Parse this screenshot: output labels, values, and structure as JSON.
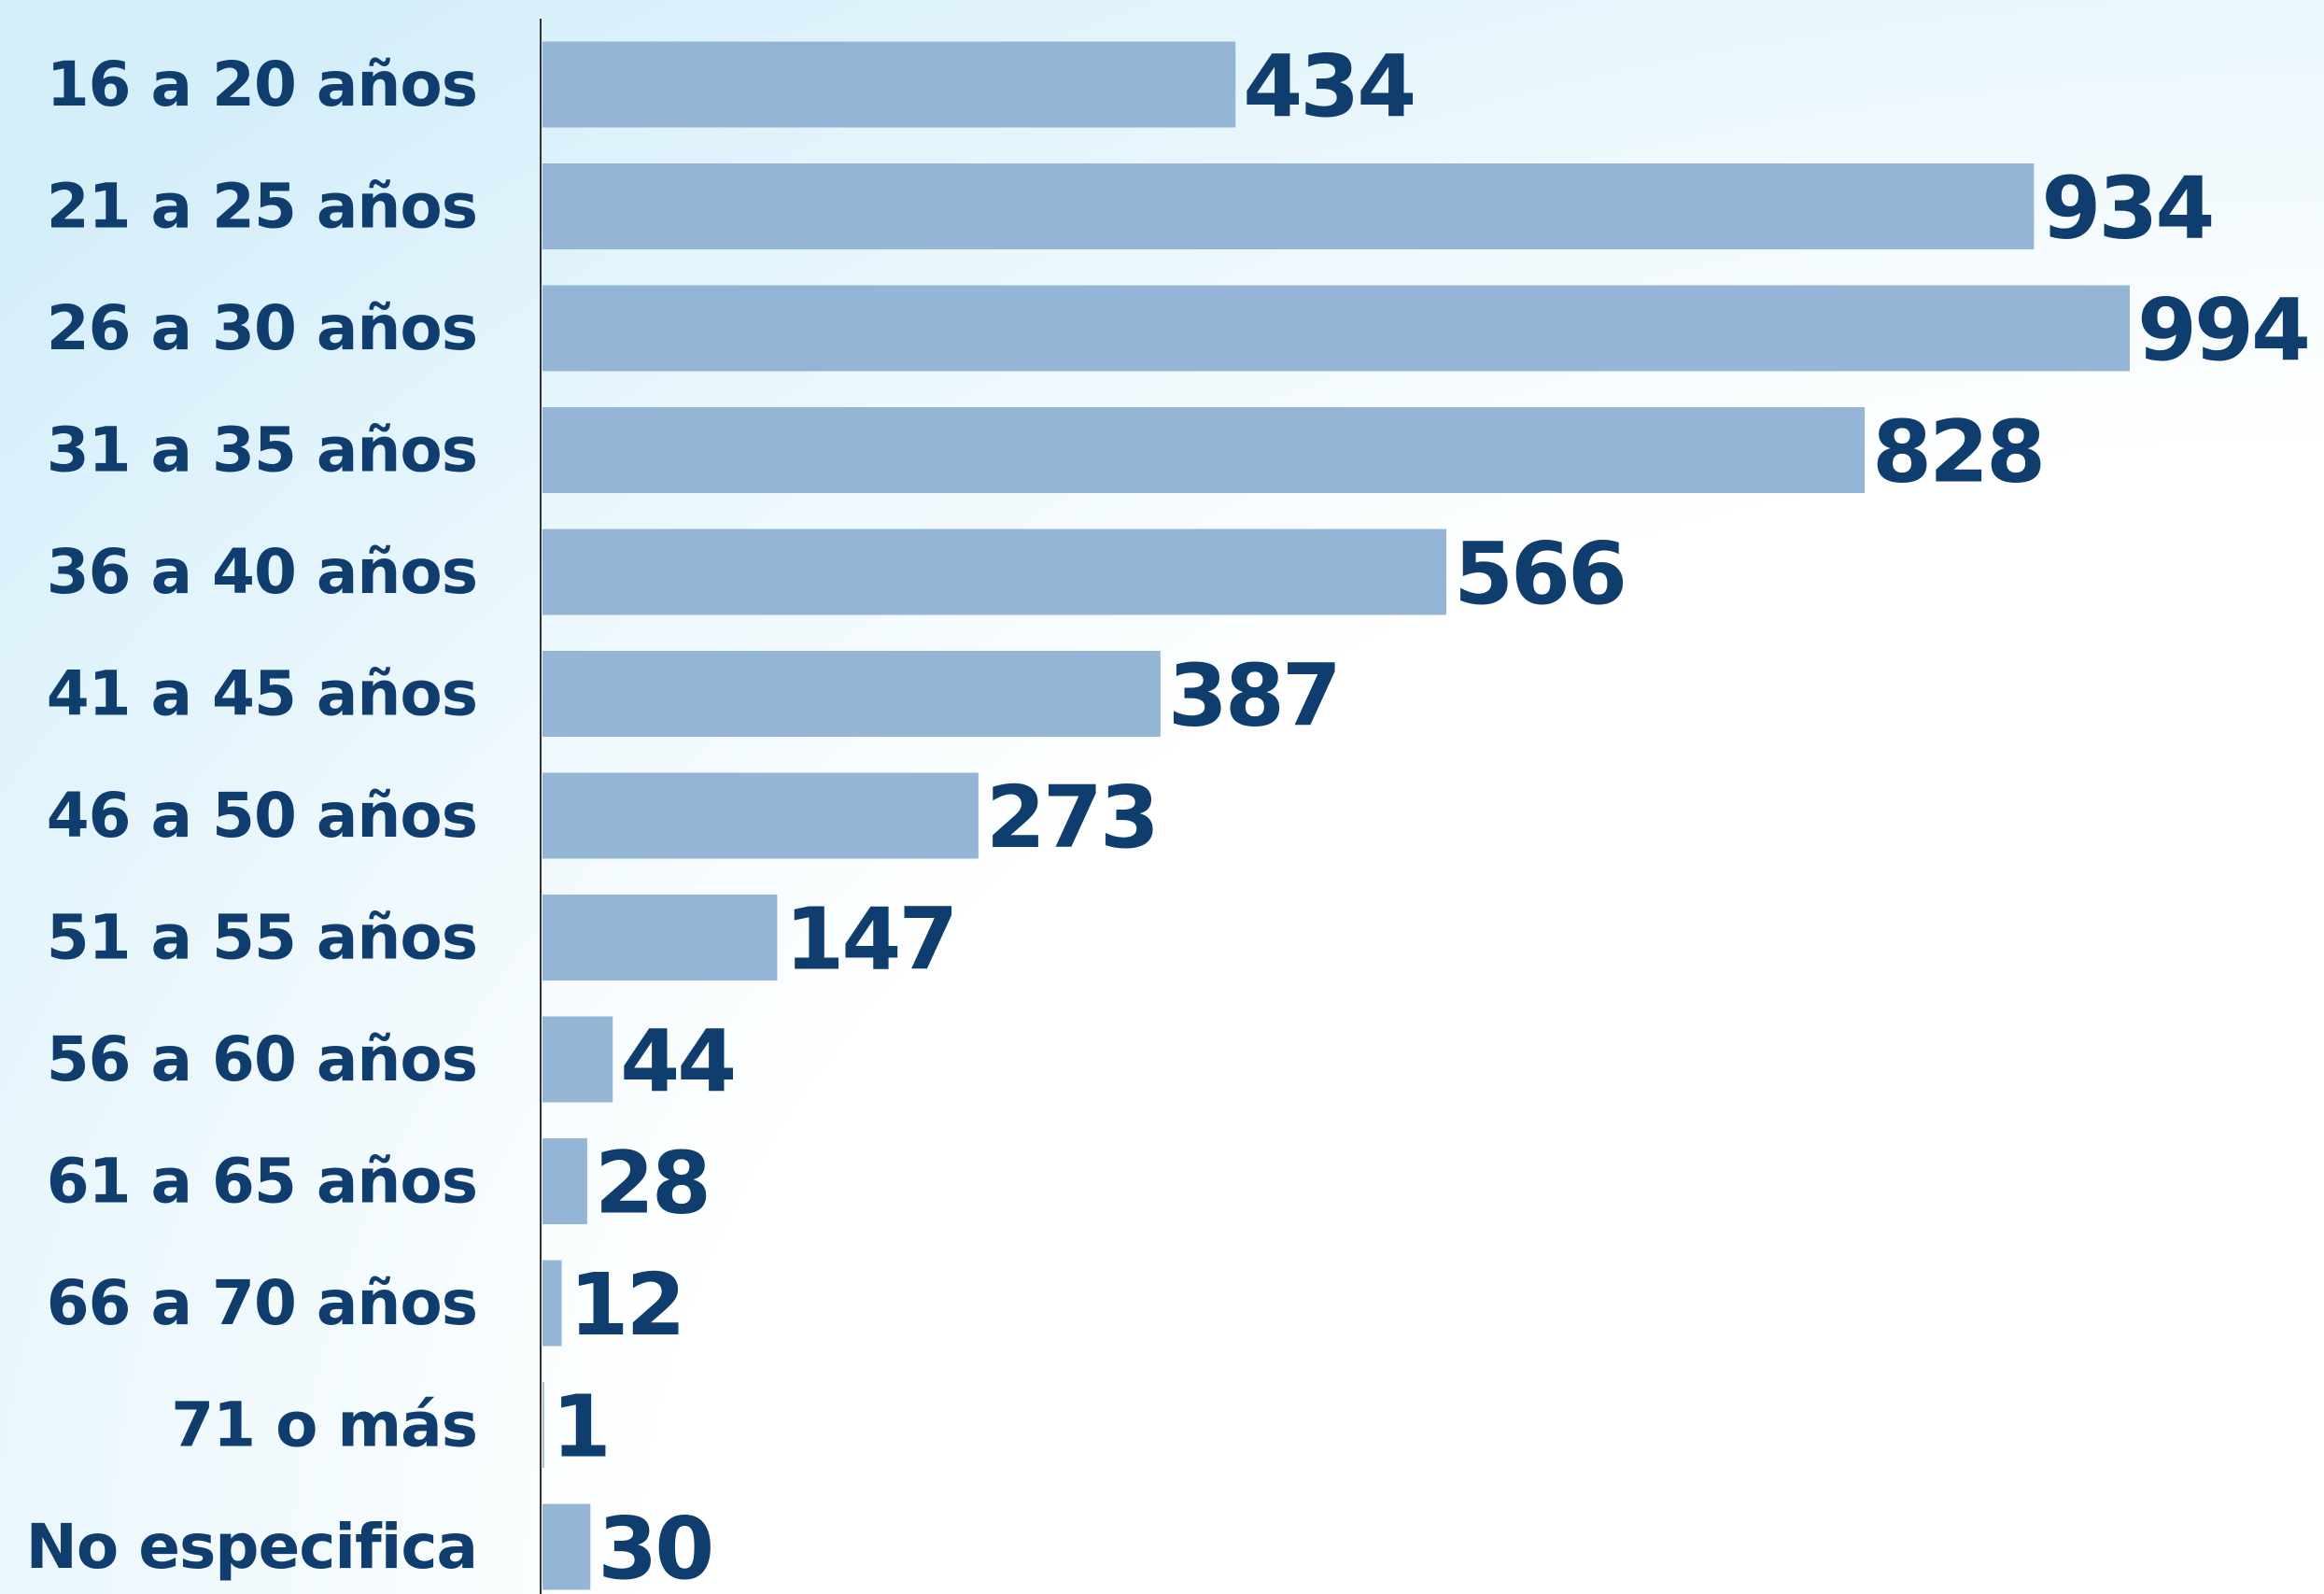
{
  "chart_data": {
    "type": "bar",
    "categories": [
      "16 a 20 años",
      "21 a 25 años",
      "26 a 30 años",
      "31 a 35 años",
      "36 a 40 años",
      "41 a 45 años",
      "46 a 50 años",
      "51 a 55 años",
      "56 a 60 años",
      "61 a 65 años",
      "66 a 70 años",
      "71 o más",
      "No especifica"
    ],
    "values": [
      434,
      934,
      994,
      828,
      566,
      387,
      273,
      147,
      44,
      28,
      12,
      1,
      30
    ],
    "color": "#95b5d6"
  }
}
